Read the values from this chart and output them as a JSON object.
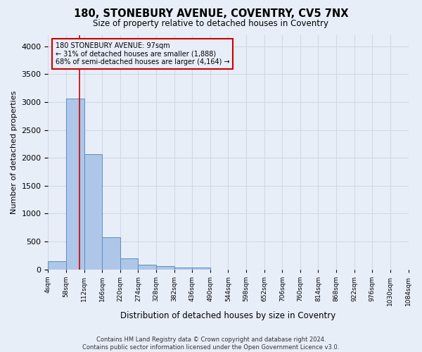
{
  "title": "180, STONEBURY AVENUE, COVENTRY, CV5 7NX",
  "subtitle": "Size of property relative to detached houses in Coventry",
  "xlabel": "Distribution of detached houses by size in Coventry",
  "ylabel": "Number of detached properties",
  "bin_edges": [
    4,
    58,
    112,
    166,
    220,
    274,
    328,
    382,
    436,
    490,
    544,
    598,
    652,
    706,
    760,
    814,
    868,
    922,
    976,
    1030,
    1084
  ],
  "bar_heights": [
    150,
    3060,
    2060,
    570,
    200,
    80,
    55,
    35,
    35,
    0,
    0,
    0,
    0,
    0,
    0,
    0,
    0,
    0,
    0,
    0
  ],
  "bar_color": "#aec6e8",
  "bar_edge_color": "#5a8fc2",
  "grid_color": "#d0d8e8",
  "background_color": "#e8eef8",
  "vline_x": 97,
  "vline_color": "#cc0000",
  "annotation_line1": "180 STONEBURY AVENUE: 97sqm",
  "annotation_line2": "← 31% of detached houses are smaller (1,888)",
  "annotation_line3": "68% of semi-detached houses are larger (4,164) →",
  "ylim": [
    0,
    4200
  ],
  "yticks": [
    0,
    500,
    1000,
    1500,
    2000,
    2500,
    3000,
    3500,
    4000
  ],
  "footer_line1": "Contains HM Land Registry data © Crown copyright and database right 2024.",
  "footer_line2": "Contains public sector information licensed under the Open Government Licence v3.0."
}
